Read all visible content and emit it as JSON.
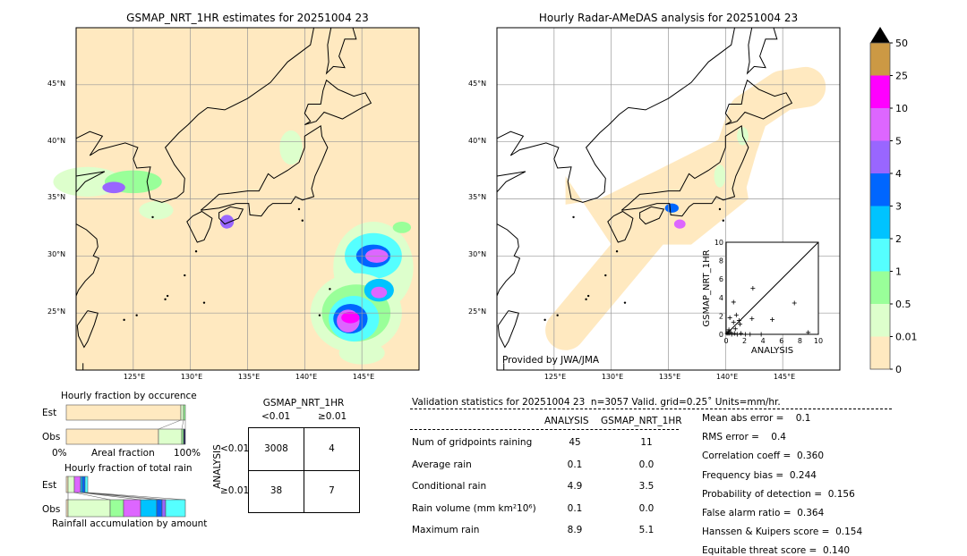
{
  "map1": {
    "title": "GSMAP_NRT_1HR estimates for 20251004 23"
  },
  "map2": {
    "title": "Hourly Radar-AMeDAS analysis for 20251004 23",
    "credit": "Provided by JWA/JMA"
  },
  "lon_ticks": [
    "125°E",
    "130°E",
    "135°E",
    "140°E",
    "145°E"
  ],
  "lat_ticks": [
    "45°N",
    "40°N",
    "35°N",
    "30°N",
    "25°N"
  ],
  "colorbar": {
    "labels": [
      "50",
      "25",
      "10",
      "5",
      "4",
      "3",
      "2",
      "1",
      "0.5",
      "0.01",
      "0"
    ],
    "colors": [
      "#cc9944",
      "#ff00ff",
      "#dd66ff",
      "#9966ff",
      "#0066ff",
      "#00c3ff",
      "#55ffff",
      "#99ff99",
      "#ddffcc",
      "#ffe9c0"
    ],
    "extend_color": "#000000"
  },
  "scatter": {
    "xlabel": "ANALYSIS",
    "ylabel": "GSMAP_NRT_1HR",
    "ticks": [
      "0",
      "2",
      "4",
      "6",
      "8",
      "10"
    ],
    "xlim": [
      0,
      10
    ],
    "ylim": [
      0,
      10
    ],
    "points": [
      [
        2.9,
        5.0
      ],
      [
        0.8,
        3.5
      ],
      [
        7.4,
        3.4
      ],
      [
        1.1,
        2.1
      ],
      [
        0.4,
        1.8
      ],
      [
        2.8,
        1.7
      ],
      [
        5.0,
        1.6
      ],
      [
        1.4,
        1.5
      ],
      [
        0.8,
        1.3
      ],
      [
        1.5,
        1.1
      ],
      [
        1.0,
        0.6
      ],
      [
        0.3,
        0.5
      ],
      [
        0.2,
        0.3
      ],
      [
        0.5,
        0.2
      ],
      [
        8.9,
        0.2
      ],
      [
        0.1,
        0.1
      ],
      [
        0.3,
        0.1
      ],
      [
        0.6,
        0.0
      ],
      [
        1.2,
        0.0
      ],
      [
        2.1,
        0.0
      ],
      [
        2.6,
        0.0
      ],
      [
        3.8,
        0.0
      ],
      [
        0.9,
        0.1
      ],
      [
        1.6,
        0.1
      ]
    ]
  },
  "occurrence": {
    "title": "Hourly fraction by occurence",
    "est": "Est",
    "obs": "Obs",
    "x0": "0%",
    "xlabel": "Areal fraction",
    "x1": "100%"
  },
  "totalrain": {
    "title": "Hourly fraction of total rain",
    "est": "Est",
    "obs": "Obs",
    "xlabel": "Rainfall accumulation by amount"
  },
  "contingency": {
    "title": "GSMAP_NRT_1HR",
    "col1": "<0.01",
    "col2": "≥0.01",
    "ylabel": "ANALYSIS",
    "row1": "<0.01",
    "row2": "≥0.01",
    "cells": [
      "3008",
      "4",
      "38",
      "7"
    ]
  },
  "stats": {
    "header": "Validation statistics for 20251004 23  n=3057 Valid. grid=0.25˚ Units=mm/hr.",
    "col_analysis": "ANALYSIS",
    "col_gsmap": "GSMAP_NRT_1HR",
    "rows": [
      {
        "label": "Num of gridpoints raining",
        "a": "45",
        "g": "11"
      },
      {
        "label": "Average rain",
        "a": "0.1",
        "g": "0.0"
      },
      {
        "label": "Conditional rain",
        "a": "4.9",
        "g": "3.5"
      },
      {
        "label": "Rain volume (mm km²10⁶)",
        "a": "0.1",
        "g": "0.0"
      },
      {
        "label": "Maximum rain",
        "a": "8.9",
        "g": "5.1"
      }
    ],
    "scores": [
      "Mean abs error =    0.1",
      "RMS error =    0.4",
      "Correlation coeff =  0.360",
      "Frequency bias =  0.244",
      "Probability of detection =  0.156",
      "False alarm ratio =  0.364",
      "Hanssen & Kuipers score =  0.154",
      "Equitable threat score =  0.140"
    ]
  }
}
